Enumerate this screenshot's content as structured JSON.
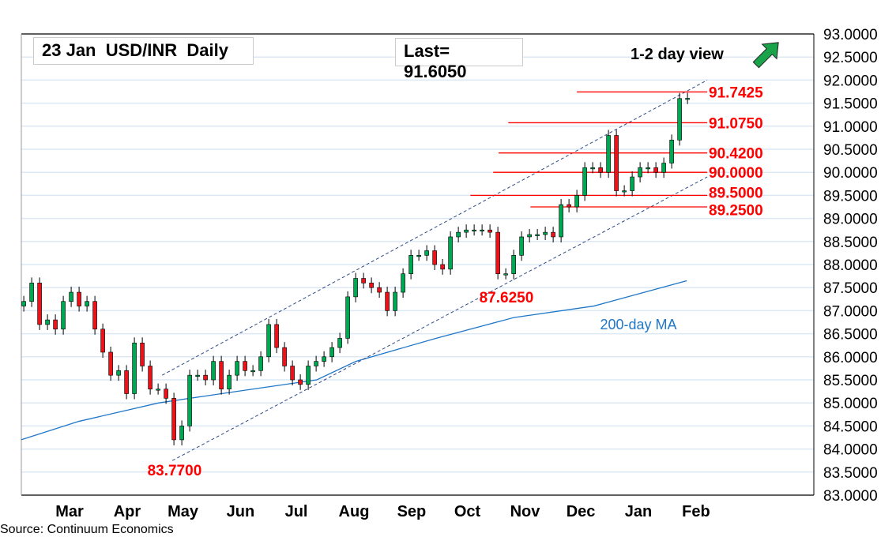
{
  "header": {
    "title": "23 Jan  USD/INR  Daily",
    "last": "Last= 91.6050",
    "view": "1-2 day view",
    "view_icon": "arrow-up-right-icon",
    "source": "Source: Continuum Economics"
  },
  "colors": {
    "up": "#00a651",
    "down": "#e8141b",
    "level": "#ff0000",
    "ma": "#1f77c8",
    "channel": "#2f4a86",
    "grid": "#dce8f4",
    "arrow": "#1aa34a"
  },
  "chart_data": {
    "type": "candlestick",
    "title": "23 Jan  USD/INR  Daily",
    "x_unit": "days since 1 Feb 2025",
    "x_start": 3.4,
    "x_step": 4.25,
    "closes": [
      87.2,
      87.6,
      86.7,
      86.8,
      86.6,
      87.2,
      87.4,
      87.1,
      87.2,
      86.6,
      86.1,
      85.6,
      85.7,
      85.2,
      86.3,
      85.8,
      85.3,
      85.3,
      85.1,
      84.2,
      84.5,
      85.6,
      85.6,
      85.5,
      85.9,
      85.3,
      85.6,
      85.9,
      85.7,
      85.7,
      86.0,
      86.7,
      86.2,
      85.8,
      85.5,
      85.4,
      85.8,
      85.9,
      86.0,
      86.2,
      86.4,
      87.3,
      87.7,
      87.6,
      87.5,
      87.4,
      87.0,
      87.4,
      87.8,
      88.2,
      88.2,
      88.3,
      88.0,
      87.9,
      88.6,
      88.7,
      88.75,
      88.75,
      88.75,
      88.7,
      87.8,
      87.8,
      88.2,
      88.6,
      88.65,
      88.65,
      88.7,
      88.6,
      89.3,
      89.25,
      89.5,
      90.1,
      90.1,
      90.0,
      90.8,
      89.6,
      89.6,
      89.9,
      90.1,
      90.1,
      90.0,
      90.2,
      90.7,
      91.6,
      91.605
    ],
    "ylim": [
      83.0,
      93.0
    ],
    "y_ticks": [
      "83.0000",
      "83.5000",
      "84.0000",
      "84.5000",
      "85.0000",
      "85.5000",
      "86.0000",
      "86.5000",
      "87.0000",
      "87.5000",
      "88.0000",
      "88.5000",
      "89.0000",
      "89.5000",
      "90.0000",
      "90.5000",
      "91.0000",
      "91.5000",
      "92.0000",
      "92.5000",
      "93.0000"
    ],
    "x_ticks": [
      {
        "label": "Mar",
        "x": 28
      },
      {
        "label": "Apr",
        "x": 59
      },
      {
        "label": "May",
        "x": 89
      },
      {
        "label": "Jun",
        "x": 120
      },
      {
        "label": "Jul",
        "x": 150
      },
      {
        "label": "Aug",
        "x": 181
      },
      {
        "label": "Sep",
        "x": 212
      },
      {
        "label": "Oct",
        "x": 242
      },
      {
        "label": "Nov",
        "x": 273
      },
      {
        "label": "Dec",
        "x": 303
      },
      {
        "label": "Jan",
        "x": 334
      },
      {
        "label": "Feb",
        "x": 365
      }
    ],
    "ma200": {
      "label": "200-day MA",
      "x": [
        2,
        33,
        76,
        118,
        161,
        182,
        225,
        267,
        310,
        360
      ],
      "y": [
        84.2,
        84.6,
        85.0,
        85.25,
        85.5,
        85.9,
        86.4,
        86.85,
        87.1,
        87.65
      ],
      "label_x": 334,
      "label_y": 86.7
    },
    "channel": [
      {
        "name": "upper",
        "x": [
          77.8,
          371
        ],
        "y": [
          85.6,
          92.0
        ]
      },
      {
        "name": "lower",
        "x": [
          83.3,
          371
        ],
        "y": [
          83.75,
          89.9
        ]
      }
    ],
    "levels": [
      {
        "label": "91.7425",
        "value": 91.7425,
        "from": 300.9
      },
      {
        "label": "91.0750",
        "value": 91.075,
        "from": 264.0
      },
      {
        "label": "90.4200",
        "value": 90.42,
        "from": 258.8
      },
      {
        "label": "90.0000",
        "value": 90.0,
        "from": 255.9
      },
      {
        "label": "89.5000",
        "value": 89.5,
        "from": 243.6
      },
      {
        "label": "89.2500",
        "value": 89.25,
        "from": 275.9
      }
    ],
    "levels_end": 371,
    "annotations": [
      {
        "label": "87.6250",
        "x": 263,
        "y": 87.3
      },
      {
        "label": "83.7700",
        "x": 84.5,
        "y": 83.55
      }
    ]
  }
}
